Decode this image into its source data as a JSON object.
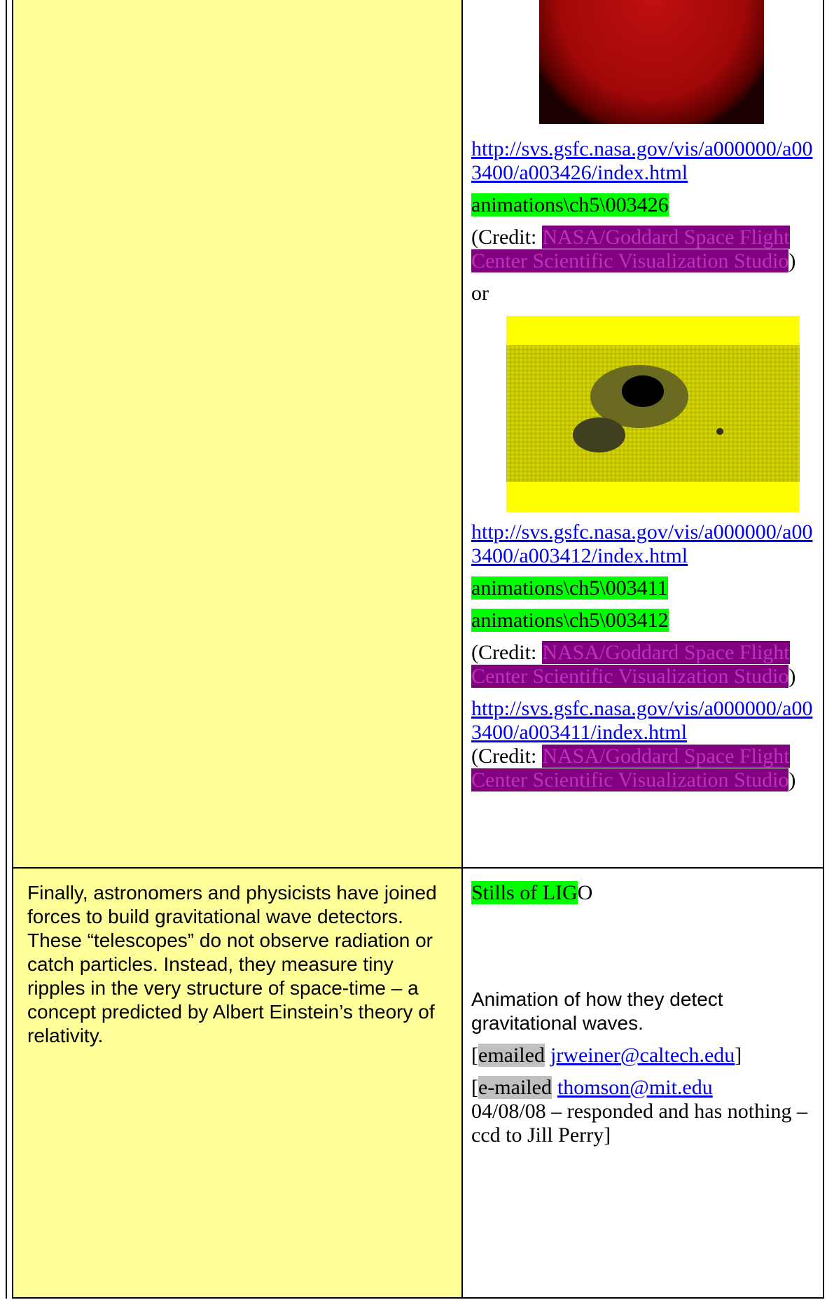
{
  "rows": [
    {
      "right": {
        "link_1": "http://svs.gsfc.nasa.gov/vis/a000000/a003400/a003426/index.html",
        "file_1": "animations\\ch5\\003426",
        "credit_1": {
          "open": "(Credit:",
          "org": "NASA/Goddard Space Flight Center Scientific Visualization Studio",
          "close": ")"
        },
        "or": "or",
        "link_2": "http://svs.gsfc.nasa.gov/vis/a000000/a003400/a003412/index.html",
        "file_2": "animations\\ch5\\003411",
        "file_3": "animations\\ch5\\003412",
        "credit_2": {
          "open": "(Credit:",
          "org": "NASA/Goddard Space Flight Center Scientific Visualization Studio",
          "close": ")"
        },
        "link_3": "http://svs.gsfc.nasa.gov/vis/a000000/a003400/a003411/index.html",
        "credit_3": {
          "open": "(Credit:",
          "org": "NASA/Goddard Space Flight Center Scientific Visualization Studio",
          "close": ")"
        }
      }
    },
    {
      "left": "Finally, astronomers and physicists have joined forces to build gravitational wave detectors. These “telescopes” do not observe radiation or catch particles. Instead, they measure tiny ripples in the very structure of space-time – a concept predicted by Albert Einstein’s theory of relativity.",
      "right": {
        "stills_highlight": "Stills of LIG",
        "stills_rest": "O",
        "animation": "Animation of how they detect gravitational waves.",
        "email_1": {
          "open": "[",
          "note": "emailed",
          "address": "jrweiner@caltech.edu",
          "close": "]"
        },
        "email_2": {
          "open": "[",
          "note": "e-mailed",
          "address": "thomson@mit.edu",
          "rest": "04/08/08 – responded and has nothing – ccd to Jill Perry]"
        }
      }
    }
  ]
}
